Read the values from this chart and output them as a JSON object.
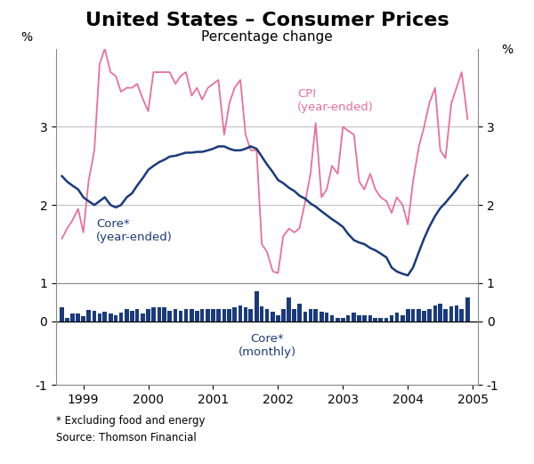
{
  "title": "United States – Consumer Prices",
  "subtitle": "Percentage change",
  "footnote1": "* Excluding food and energy",
  "footnote2": "Source: Thomson Financial",
  "ylabel_left": "%",
  "ylabel_right": "%",
  "line_ylim": [
    1,
    4
  ],
  "line_yticks": [
    1,
    2,
    3
  ],
  "bar_ylim": [
    -1,
    0.6
  ],
  "bar_yticks": [
    -1,
    0
  ],
  "bg_color": "#ffffff",
  "line_color_cpi": "#e8709a",
  "line_color_core": "#1a3a7a",
  "bar_color": "#1a3a7a",
  "title_fontsize": 16,
  "subtitle_fontsize": 11,
  "axis_fontsize": 10,
  "cpi_label": "CPI\n(year-ended)",
  "core_ye_label": "Core*\n(year-ended)",
  "core_mo_label": "Core*\n(monthly)",
  "xmin": 1998.58,
  "xmax": 2005.08,
  "cpi_x": [
    1998.67,
    1998.75,
    1998.83,
    1998.92,
    1999.0,
    1999.08,
    1999.17,
    1999.25,
    1999.33,
    1999.42,
    1999.5,
    1999.58,
    1999.67,
    1999.75,
    1999.83,
    1999.92,
    2000.0,
    2000.08,
    2000.17,
    2000.25,
    2000.33,
    2000.42,
    2000.5,
    2000.58,
    2000.67,
    2000.75,
    2000.83,
    2000.92,
    2001.0,
    2001.08,
    2001.17,
    2001.25,
    2001.33,
    2001.42,
    2001.5,
    2001.58,
    2001.67,
    2001.75,
    2001.83,
    2001.92,
    2002.0,
    2002.08,
    2002.17,
    2002.25,
    2002.33,
    2002.42,
    2002.5,
    2002.58,
    2002.67,
    2002.75,
    2002.83,
    2002.92,
    2003.0,
    2003.08,
    2003.17,
    2003.25,
    2003.33,
    2003.42,
    2003.5,
    2003.58,
    2003.67,
    2003.75,
    2003.83,
    2003.92,
    2004.0,
    2004.08,
    2004.17,
    2004.25,
    2004.33,
    2004.42,
    2004.5,
    2004.58,
    2004.67,
    2004.75,
    2004.83,
    2004.92
  ],
  "cpi_y": [
    1.57,
    1.7,
    1.8,
    1.95,
    1.65,
    2.3,
    2.7,
    3.8,
    4.0,
    3.7,
    3.65,
    3.45,
    3.5,
    3.5,
    3.55,
    3.35,
    3.2,
    3.7,
    3.7,
    3.7,
    3.7,
    3.55,
    3.65,
    3.7,
    3.4,
    3.5,
    3.35,
    3.5,
    3.55,
    3.6,
    2.9,
    3.3,
    3.5,
    3.6,
    2.9,
    2.7,
    2.7,
    1.5,
    1.4,
    1.15,
    1.13,
    1.6,
    1.7,
    1.65,
    1.7,
    2.05,
    2.4,
    3.05,
    2.1,
    2.2,
    2.5,
    2.4,
    3.0,
    2.95,
    2.9,
    2.3,
    2.2,
    2.4,
    2.2,
    2.1,
    2.05,
    1.9,
    2.1,
    2.0,
    1.75,
    2.3,
    2.75,
    3.0,
    3.3,
    3.5,
    2.7,
    2.6,
    3.3,
    3.5,
    3.7,
    3.1
  ],
  "core_ye_x": [
    1998.67,
    1998.75,
    1998.83,
    1998.92,
    1999.0,
    1999.08,
    1999.17,
    1999.25,
    1999.33,
    1999.42,
    1999.5,
    1999.58,
    1999.67,
    1999.75,
    1999.83,
    1999.92,
    2000.0,
    2000.08,
    2000.17,
    2000.25,
    2000.33,
    2000.42,
    2000.5,
    2000.58,
    2000.67,
    2000.75,
    2000.83,
    2000.92,
    2001.0,
    2001.08,
    2001.17,
    2001.25,
    2001.33,
    2001.42,
    2001.5,
    2001.58,
    2001.67,
    2001.75,
    2001.83,
    2001.92,
    2002.0,
    2002.08,
    2002.17,
    2002.25,
    2002.33,
    2002.42,
    2002.5,
    2002.58,
    2002.67,
    2002.75,
    2002.83,
    2002.92,
    2003.0,
    2003.08,
    2003.17,
    2003.25,
    2003.33,
    2003.42,
    2003.5,
    2003.58,
    2003.67,
    2003.75,
    2003.83,
    2003.92,
    2004.0,
    2004.08,
    2004.17,
    2004.25,
    2004.33,
    2004.42,
    2004.5,
    2004.58,
    2004.67,
    2004.75,
    2004.83,
    2004.92
  ],
  "core_ye_y": [
    2.37,
    2.3,
    2.25,
    2.2,
    2.1,
    2.05,
    2.0,
    2.05,
    2.1,
    2.0,
    1.97,
    2.0,
    2.1,
    2.15,
    2.25,
    2.35,
    2.45,
    2.5,
    2.55,
    2.58,
    2.62,
    2.63,
    2.65,
    2.67,
    2.67,
    2.68,
    2.68,
    2.7,
    2.72,
    2.75,
    2.75,
    2.72,
    2.7,
    2.7,
    2.72,
    2.75,
    2.72,
    2.62,
    2.52,
    2.42,
    2.32,
    2.28,
    2.22,
    2.18,
    2.12,
    2.08,
    2.02,
    1.98,
    1.92,
    1.87,
    1.82,
    1.77,
    1.72,
    1.63,
    1.55,
    1.52,
    1.5,
    1.45,
    1.42,
    1.38,
    1.33,
    1.2,
    1.15,
    1.12,
    1.1,
    1.2,
    1.4,
    1.57,
    1.72,
    1.86,
    1.96,
    2.03,
    2.12,
    2.2,
    2.3,
    2.38
  ],
  "bar_x": [
    1998.67,
    1998.75,
    1998.83,
    1998.92,
    1999.0,
    1999.08,
    1999.17,
    1999.25,
    1999.33,
    1999.42,
    1999.5,
    1999.58,
    1999.67,
    1999.75,
    1999.83,
    1999.92,
    2000.0,
    2000.08,
    2000.17,
    2000.25,
    2000.33,
    2000.42,
    2000.5,
    2000.58,
    2000.67,
    2000.75,
    2000.83,
    2000.92,
    2001.0,
    2001.08,
    2001.17,
    2001.25,
    2001.33,
    2001.42,
    2001.5,
    2001.58,
    2001.67,
    2001.75,
    2001.83,
    2001.92,
    2002.0,
    2002.08,
    2002.17,
    2002.25,
    2002.33,
    2002.42,
    2002.5,
    2002.58,
    2002.67,
    2002.75,
    2002.83,
    2002.92,
    2003.0,
    2003.08,
    2003.17,
    2003.25,
    2003.33,
    2003.42,
    2003.5,
    2003.58,
    2003.67,
    2003.75,
    2003.83,
    2003.92,
    2004.0,
    2004.08,
    2004.17,
    2004.25,
    2004.33,
    2004.42,
    2004.5,
    2004.58,
    2004.67,
    2004.75,
    2004.83,
    2004.92
  ],
  "bar_y": [
    0.22,
    0.05,
    0.12,
    0.12,
    0.08,
    0.18,
    0.16,
    0.12,
    0.15,
    0.12,
    0.1,
    0.14,
    0.2,
    0.16,
    0.2,
    0.12,
    0.2,
    0.22,
    0.22,
    0.22,
    0.16,
    0.2,
    0.16,
    0.2,
    0.2,
    0.16,
    0.2,
    0.2,
    0.2,
    0.2,
    0.2,
    0.2,
    0.22,
    0.25,
    0.22,
    0.2,
    0.48,
    0.24,
    0.2,
    0.15,
    0.1,
    0.2,
    0.38,
    0.2,
    0.28,
    0.15,
    0.2,
    0.2,
    0.15,
    0.14,
    0.1,
    0.06,
    0.06,
    0.1,
    0.14,
    0.1,
    0.1,
    0.1,
    0.06,
    0.05,
    0.06,
    0.1,
    0.14,
    0.1,
    0.2,
    0.2,
    0.2,
    0.16,
    0.2,
    0.25,
    0.28,
    0.2,
    0.24,
    0.25,
    0.2,
    0.38
  ],
  "xticks": [
    1999,
    2000,
    2001,
    2002,
    2003,
    2004,
    2005
  ]
}
